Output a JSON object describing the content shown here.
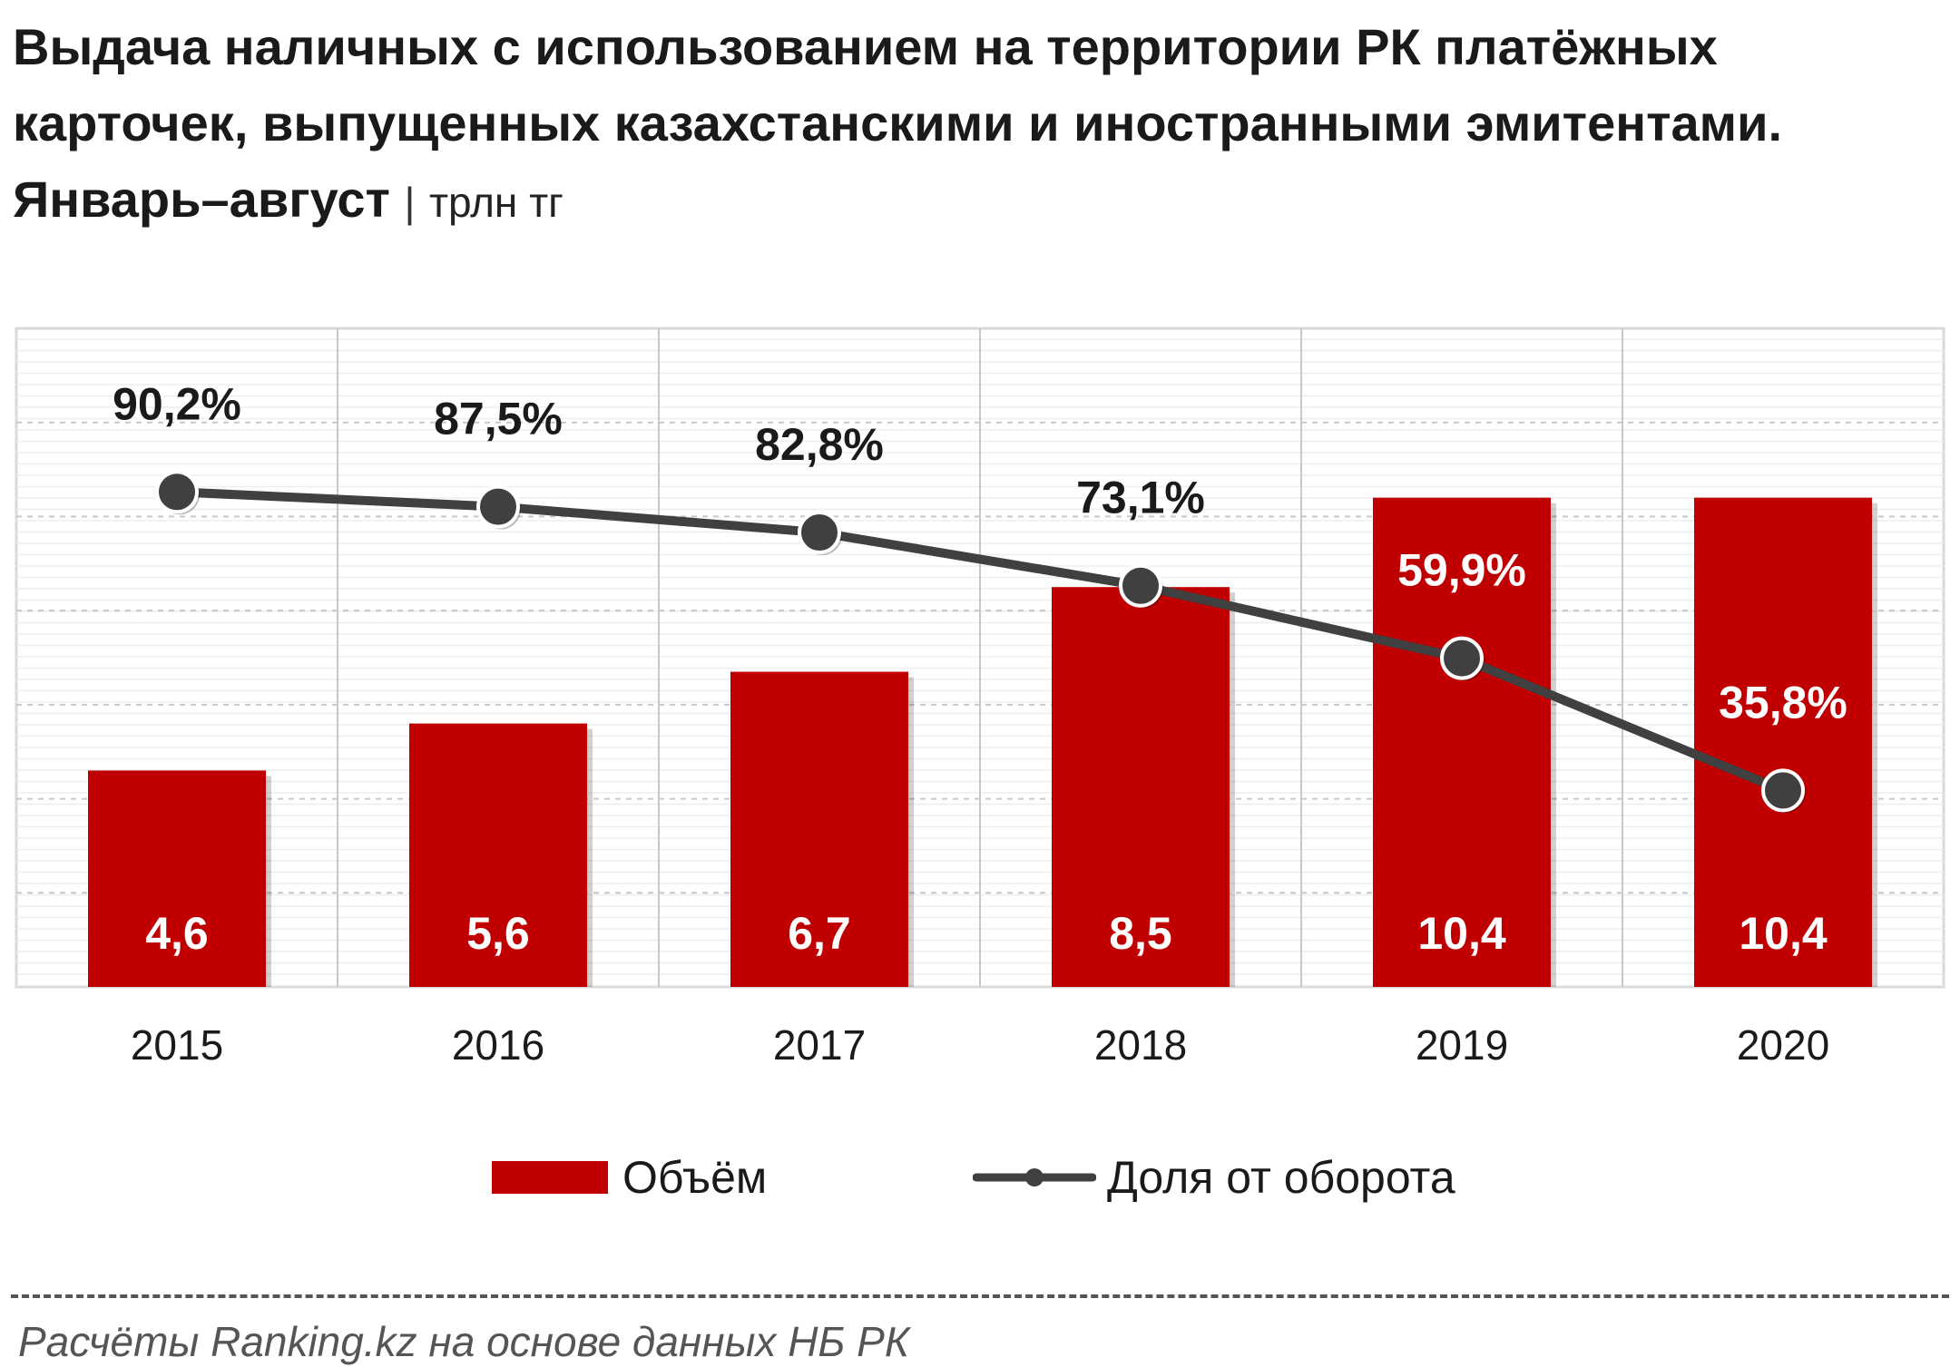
{
  "title": {
    "line1": "Выдача наличных с использованием на территории РК платёжных",
    "line2": "карточек, выпущенных казахстанскими и иностранными эмитентами.",
    "line3_bold": "Январь–август",
    "separator": "|",
    "unit": "трлн тг"
  },
  "legend": {
    "bar_label": "Объём",
    "line_label": "Доля от оборота"
  },
  "source": "Расчёты Ranking.kz на основе данных  НБ РК",
  "colors": {
    "bar": "#c00000",
    "line": "#404040",
    "grid": "#d9d9d9"
  },
  "chart_data": {
    "type": "bar",
    "categories": [
      "2015",
      "2016",
      "2017",
      "2018",
      "2019",
      "2020"
    ],
    "series": [
      {
        "name": "Объём",
        "type": "bar",
        "values": [
          4.6,
          5.6,
          6.7,
          8.5,
          10.4,
          10.4
        ],
        "labels": [
          "4,6",
          "5,6",
          "6,7",
          "8,5",
          "10,4",
          "10,4"
        ]
      },
      {
        "name": "Доля от оборота",
        "type": "line",
        "values": [
          90.2,
          87.5,
          82.8,
          73.1,
          59.9,
          35.8
        ],
        "labels": [
          "90,2%",
          "87,5%",
          "82,8%",
          "73,1%",
          "59,9%",
          "35,8%"
        ]
      }
    ],
    "ylim_bar": [
      0,
      14
    ],
    "ylim_line": [
      0,
      120
    ],
    "grid": true,
    "legend_position": "bottom"
  }
}
